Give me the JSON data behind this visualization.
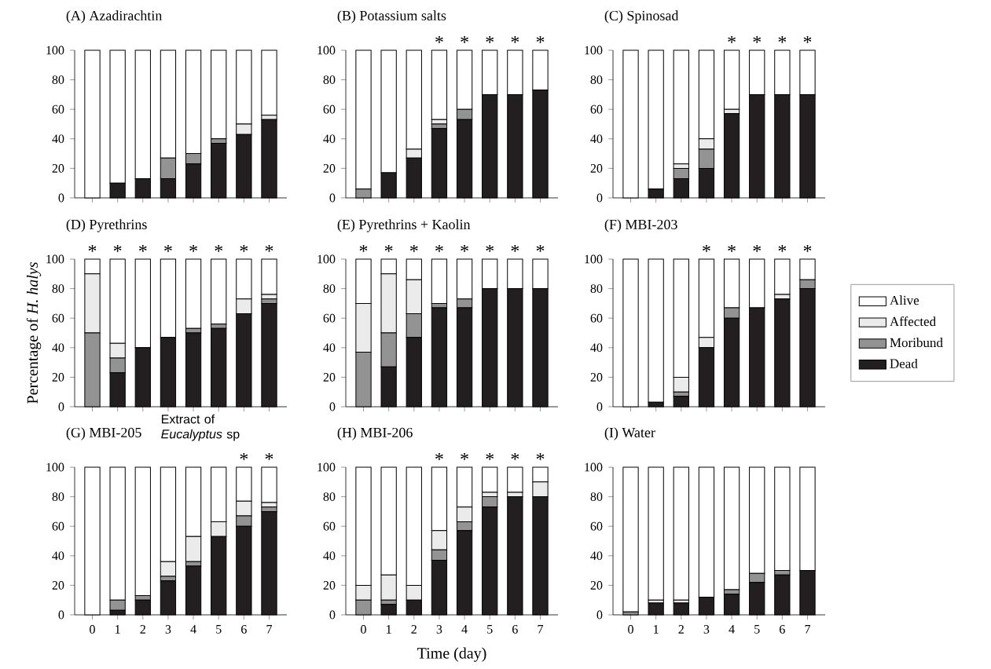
{
  "chart_data": [
    {
      "type": "bar",
      "title": "(A) Azadirachtin",
      "stacked": true,
      "categories": [
        "0",
        "1",
        "2",
        "3",
        "4",
        "5",
        "6",
        "7"
      ],
      "ylim": [
        0,
        100
      ],
      "yticks": [
        0,
        20,
        40,
        60,
        80,
        100
      ],
      "tick_labels": "y",
      "series": [
        {
          "color": "#231f20",
          "values": [
            0,
            10,
            13,
            13,
            23,
            37,
            43,
            53
          ]
        },
        {
          "color": "#939393",
          "values": [
            0,
            0,
            0,
            14,
            7,
            3,
            0,
            0
          ]
        },
        {
          "color": "#ebebeb",
          "values": [
            0,
            0,
            0,
            0,
            0,
            0,
            7,
            3
          ]
        },
        {
          "color": "#ffffff",
          "values": [
            100,
            90,
            87,
            73,
            70,
            60,
            50,
            44
          ]
        }
      ]
    },
    {
      "type": "bar",
      "title": "(B) Potassium  salts",
      "stacked": true,
      "categories": [
        "0",
        "1",
        "2",
        "3",
        "4",
        "5",
        "6",
        "7"
      ],
      "ylim": [
        0,
        100
      ],
      "yticks": [
        0,
        20,
        40,
        60,
        80,
        100
      ],
      "tick_labels": "y",
      "series": [
        {
          "color": "#231f20",
          "values": [
            0,
            17,
            27,
            47,
            53,
            70,
            70,
            73
          ]
        },
        {
          "color": "#939393",
          "values": [
            6,
            0,
            0,
            3,
            7,
            0,
            0,
            0
          ]
        },
        {
          "color": "#ebebeb",
          "values": [
            0,
            0,
            6,
            3,
            0,
            0,
            0,
            0
          ]
        },
        {
          "color": "#ffffff",
          "values": [
            94,
            83,
            67,
            47,
            40,
            30,
            30,
            27
          ]
        }
      ],
      "annotations": [
        {
          "text": "*",
          "x": "3",
          "y": 100
        },
        {
          "text": "*",
          "x": "4",
          "y": 100
        },
        {
          "text": "*",
          "x": "5",
          "y": 100
        },
        {
          "text": "*",
          "x": "6",
          "y": 100
        },
        {
          "text": "*",
          "x": "7",
          "y": 100
        }
      ]
    },
    {
      "type": "bar",
      "title": "(C) Spinosad",
      "stacked": true,
      "categories": [
        "0",
        "1",
        "2",
        "3",
        "4",
        "5",
        "6",
        "7"
      ],
      "ylim": [
        0,
        100
      ],
      "yticks": [
        0,
        20,
        40,
        60,
        80,
        100
      ],
      "tick_labels": "y",
      "series": [
        {
          "color": "#231f20",
          "values": [
            0,
            6,
            13,
            20,
            57,
            70,
            70,
            70
          ]
        },
        {
          "color": "#939393",
          "values": [
            0,
            0,
            7,
            13,
            0,
            0,
            0,
            0
          ]
        },
        {
          "color": "#ebebeb",
          "values": [
            0,
            0,
            3,
            7,
            3,
            0,
            0,
            0
          ]
        },
        {
          "color": "#ffffff",
          "values": [
            100,
            94,
            77,
            60,
            40,
            30,
            30,
            30
          ]
        }
      ],
      "annotations": [
        {
          "text": "*",
          "x": "4",
          "y": 100
        },
        {
          "text": "*",
          "x": "5",
          "y": 100
        },
        {
          "text": "*",
          "x": "6",
          "y": 100
        },
        {
          "text": "*",
          "x": "7",
          "y": 100
        }
      ]
    },
    {
      "type": "bar",
      "title": "(D) Pyrethrins",
      "ylabel": "Percentage of *H. halys*",
      "stacked": true,
      "categories": [
        "0",
        "1",
        "2",
        "3",
        "4",
        "5",
        "6",
        "7"
      ],
      "ylim": [
        0,
        100
      ],
      "yticks": [
        0,
        20,
        40,
        60,
        80,
        100
      ],
      "tick_labels": "y",
      "series": [
        {
          "color": "#231f20",
          "values": [
            0,
            23,
            40,
            47,
            50,
            53,
            63,
            70
          ]
        },
        {
          "color": "#939393",
          "values": [
            50,
            10,
            0,
            0,
            3,
            3,
            0,
            3
          ]
        },
        {
          "color": "#ebebeb",
          "values": [
            40,
            10,
            0,
            0,
            0,
            0,
            10,
            3
          ]
        },
        {
          "color": "#ffffff",
          "values": [
            10,
            57,
            60,
            53,
            47,
            44,
            27,
            24
          ]
        }
      ],
      "annotations": [
        {
          "text": "*",
          "x": "0",
          "y": 100
        },
        {
          "text": "*",
          "x": "1",
          "y": 100
        },
        {
          "text": "*",
          "x": "2",
          "y": 100
        },
        {
          "text": "*",
          "x": "3",
          "y": 100
        },
        {
          "text": "*",
          "x": "4",
          "y": 100
        },
        {
          "text": "*",
          "x": "5",
          "y": 100
        },
        {
          "text": "*",
          "x": "6",
          "y": 100
        },
        {
          "text": "*",
          "x": "7",
          "y": 100
        }
      ]
    },
    {
      "type": "bar",
      "title": "(E) Pyrethrins  + Kaolin",
      "stacked": true,
      "categories": [
        "0",
        "1",
        "2",
        "3",
        "4",
        "5",
        "6",
        "7"
      ],
      "ylim": [
        0,
        100
      ],
      "yticks": [
        0,
        20,
        40,
        60,
        80,
        100
      ],
      "tick_labels": "y",
      "series": [
        {
          "color": "#231f20",
          "values": [
            0,
            27,
            47,
            67,
            67,
            80,
            80,
            80
          ]
        },
        {
          "color": "#939393",
          "values": [
            37,
            23,
            16,
            3,
            6,
            0,
            0,
            0
          ]
        },
        {
          "color": "#ebebeb",
          "values": [
            33,
            40,
            23,
            0,
            0,
            0,
            0,
            0
          ]
        },
        {
          "color": "#ffffff",
          "values": [
            30,
            10,
            14,
            30,
            27,
            20,
            20,
            20
          ]
        }
      ],
      "annotations": [
        {
          "text": "*",
          "x": "0",
          "y": 100
        },
        {
          "text": "*",
          "x": "1",
          "y": 100
        },
        {
          "text": "*",
          "x": "2",
          "y": 100
        },
        {
          "text": "*",
          "x": "3",
          "y": 100
        },
        {
          "text": "*",
          "x": "4",
          "y": 100
        },
        {
          "text": "*",
          "x": "5",
          "y": 100
        },
        {
          "text": "*",
          "x": "6",
          "y": 100
        },
        {
          "text": "*",
          "x": "7",
          "y": 100
        }
      ]
    },
    {
      "type": "bar",
      "title": "(F) MBI-203",
      "stacked": true,
      "legend": "right",
      "categories": [
        "0",
        "1",
        "2",
        "3",
        "4",
        "5",
        "6",
        "7"
      ],
      "ylim": [
        0,
        100
      ],
      "yticks": [
        0,
        20,
        40,
        60,
        80,
        100
      ],
      "tick_labels": "y",
      "series": [
        {
          "name": "Dead",
          "color": "#231f20",
          "values": [
            0,
            3,
            7,
            40,
            60,
            67,
            73,
            80
          ]
        },
        {
          "name": "Moribund",
          "color": "#939393",
          "values": [
            0,
            0,
            3,
            0,
            7,
            0,
            0,
            6
          ]
        },
        {
          "name": "Affected",
          "color": "#ebebeb",
          "values": [
            0,
            0,
            10,
            7,
            0,
            0,
            3,
            0
          ]
        },
        {
          "name": "Alive",
          "color": "#ffffff",
          "values": [
            100,
            97,
            80,
            53,
            33,
            33,
            24,
            14
          ]
        }
      ],
      "annotations": [
        {
          "text": "*",
          "x": "3",
          "y": 100
        },
        {
          "text": "*",
          "x": "4",
          "y": 100
        },
        {
          "text": "*",
          "x": "5",
          "y": 100
        },
        {
          "text": "*",
          "x": "6",
          "y": 100
        },
        {
          "text": "*",
          "x": "7",
          "y": 100
        }
      ]
    },
    {
      "type": "bar",
      "title": "(G) MBI-205",
      "stacked": true,
      "categories": [
        "0",
        "1",
        "2",
        "3",
        "4",
        "5",
        "6",
        "7"
      ],
      "ylim": [
        0,
        100
      ],
      "yticks": [
        0,
        20,
        40,
        60,
        80,
        100
      ],
      "series": [
        {
          "color": "#231f20",
          "values": [
            0,
            3,
            10,
            23,
            33,
            53,
            60,
            70
          ]
        },
        {
          "color": "#939393",
          "values": [
            0,
            7,
            3,
            3,
            3,
            0,
            7,
            3
          ]
        },
        {
          "color": "#ebebeb",
          "values": [
            0,
            0,
            0,
            10,
            17,
            10,
            10,
            3
          ]
        },
        {
          "color": "#ffffff",
          "values": [
            100,
            90,
            87,
            64,
            47,
            37,
            23,
            24
          ]
        }
      ],
      "annotations": [
        "Extract of *Eucalyptus* sp",
        {
          "text": "*",
          "x": "6",
          "y": 100
        },
        {
          "text": "*",
          "x": "7",
          "y": 100
        }
      ]
    },
    {
      "type": "bar",
      "title": "(H) MBI-206",
      "xlabel": "Time (day)",
      "stacked": true,
      "categories": [
        "0",
        "1",
        "2",
        "3",
        "4",
        "5",
        "6",
        "7"
      ],
      "ylim": [
        0,
        100
      ],
      "yticks": [
        0,
        20,
        40,
        60,
        80,
        100
      ],
      "series": [
        {
          "color": "#231f20",
          "values": [
            0,
            7,
            10,
            37,
            57,
            73,
            80,
            80
          ]
        },
        {
          "color": "#939393",
          "values": [
            10,
            3,
            0,
            7,
            6,
            7,
            0,
            0
          ]
        },
        {
          "color": "#ebebeb",
          "values": [
            10,
            17,
            10,
            13,
            10,
            3,
            3,
            10
          ]
        },
        {
          "color": "#ffffff",
          "values": [
            80,
            73,
            80,
            43,
            27,
            17,
            17,
            10
          ]
        }
      ],
      "annotations": [
        {
          "text": "*",
          "x": "3",
          "y": 100
        },
        {
          "text": "*",
          "x": "4",
          "y": 100
        },
        {
          "text": "*",
          "x": "5",
          "y": 100
        },
        {
          "text": "*",
          "x": "6",
          "y": 100
        },
        {
          "text": "*",
          "x": "7",
          "y": 100
        }
      ]
    },
    {
      "type": "bar",
      "title": "(I) Water",
      "stacked": true,
      "categories": [
        "0",
        "1",
        "2",
        "3",
        "4",
        "5",
        "6",
        "7"
      ],
      "ylim": [
        0,
        100
      ],
      "yticks": [
        0,
        20,
        40,
        60,
        80,
        100
      ],
      "series": [
        {
          "color": "#231f20",
          "values": [
            0,
            8,
            8,
            12,
            14,
            22,
            27,
            30
          ]
        },
        {
          "color": "#939393",
          "values": [
            2,
            0,
            0,
            0,
            3,
            6,
            3,
            0
          ]
        },
        {
          "color": "#ebebeb",
          "values": [
            0,
            2,
            2,
            0,
            0,
            0,
            0,
            0
          ]
        },
        {
          "color": "#ffffff",
          "values": [
            98,
            90,
            90,
            88,
            83,
            72,
            70,
            70
          ]
        }
      ]
    }
  ]
}
